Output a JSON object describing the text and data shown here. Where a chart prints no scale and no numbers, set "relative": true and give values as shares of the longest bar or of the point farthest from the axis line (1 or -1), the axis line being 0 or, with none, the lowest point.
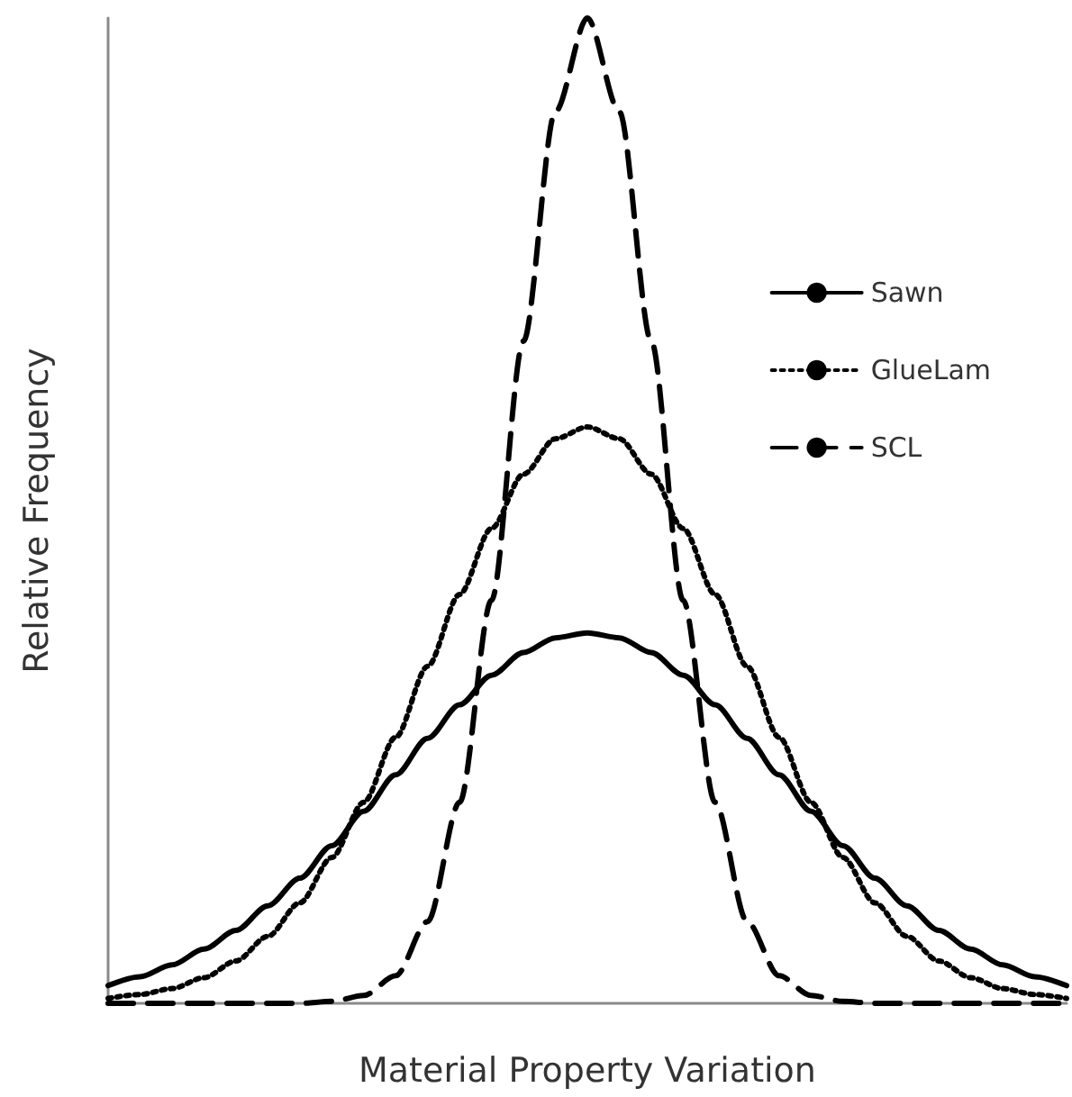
{
  "chart_data": {
    "type": "line",
    "relative": true,
    "xlabel": "Material Property Variation",
    "ylabel": "Relative Frequency",
    "categories": [
      null,
      null,
      null,
      null,
      null,
      null,
      null,
      null,
      null,
      null,
      null,
      null,
      null,
      null,
      null,
      null,
      null,
      null,
      null,
      null,
      null,
      null,
      null,
      null,
      null,
      null,
      null,
      null,
      null,
      null,
      null
    ],
    "series": [
      {
        "name": "Sawn",
        "color": "#000000",
        "line_style": "solid",
        "values": [
          0.018,
          0.027,
          0.039,
          0.055,
          0.074,
          0.099,
          0.127,
          0.16,
          0.195,
          0.232,
          0.269,
          0.303,
          0.333,
          0.356,
          0.371,
          0.376,
          0.371,
          0.356,
          0.333,
          0.303,
          0.269,
          0.232,
          0.195,
          0.16,
          0.127,
          0.099,
          0.074,
          0.055,
          0.039,
          0.027,
          0.018
        ]
      },
      {
        "name": "GlueLam",
        "color": "#000000",
        "line_style": "dotted",
        "values": [
          0.005,
          0.009,
          0.015,
          0.026,
          0.043,
          0.068,
          0.102,
          0.148,
          0.204,
          0.27,
          0.342,
          0.415,
          0.482,
          0.537,
          0.573,
          0.585,
          0.573,
          0.537,
          0.482,
          0.415,
          0.342,
          0.27,
          0.204,
          0.148,
          0.102,
          0.068,
          0.043,
          0.026,
          0.015,
          0.009,
          0.005
        ]
      },
      {
        "name": "SCL",
        "color": "#000000",
        "line_style": "dashed",
        "values": [
          0,
          0,
          0,
          0,
          0,
          0,
          0,
          0.002,
          0.008,
          0.028,
          0.083,
          0.204,
          0.409,
          0.672,
          0.905,
          1,
          0.905,
          0.672,
          0.409,
          0.204,
          0.083,
          0.028,
          0.008,
          0.002,
          0,
          0,
          0,
          0,
          0,
          0,
          0
        ]
      }
    ],
    "legend": "top right",
    "grid": false,
    "marker": "none"
  }
}
